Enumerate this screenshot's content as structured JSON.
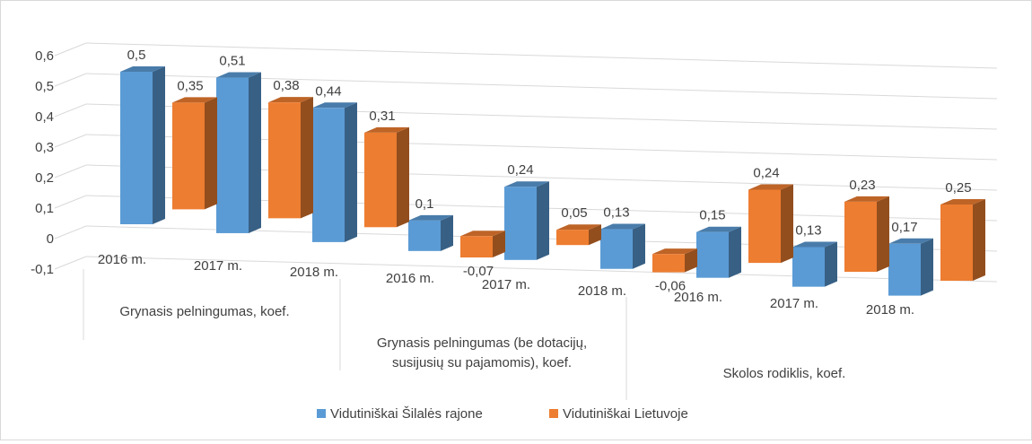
{
  "chart_data": {
    "type": "bar",
    "variant": "3d-clustered-column",
    "title": "",
    "y_ticks": [
      "0,6",
      "0,5",
      "0,4",
      "0,3",
      "0,2",
      "0,1",
      "0",
      "-0,1"
    ],
    "ylim": [
      -0.1,
      0.6
    ],
    "grid": true,
    "legend_position": "bottom",
    "groups": [
      {
        "label": "Grynasis pelningumas, koef.",
        "lines": [
          "Grynasis pelningumas, koef."
        ]
      },
      {
        "label": "Grynasis pelningumas (be dotacijų, susijusių su pajamomis), koef.",
        "lines": [
          "Grynasis pelningumas (be dotacijų,",
          "susijusių su pajamomis), koef."
        ]
      },
      {
        "label": "Skolos rodiklis, koef.",
        "lines": [
          "Skolos rodiklis, koef."
        ]
      }
    ],
    "categories": [
      "2016 m.",
      "2017 m.",
      "2018 m.",
      "2016 m.",
      "2017 m.",
      "2018 m.",
      "2016 m.",
      "2017 m.",
      "2018 m."
    ],
    "series": [
      {
        "name": "Vidutiniškai Šilalės rajone",
        "color": "#5b9bd5",
        "values": [
          0.5,
          0.51,
          0.44,
          0.1,
          0.24,
          0.13,
          0.15,
          0.13,
          0.17
        ],
        "labels": [
          "0,5",
          "0,51",
          "0,44",
          "0,1",
          "0,24",
          "0,13",
          "0,15",
          "0,13",
          "0,17"
        ]
      },
      {
        "name": "Vidutiniškai Lietuvoje",
        "color": "#ed7d31",
        "values": [
          0.35,
          0.38,
          0.31,
          -0.07,
          0.05,
          -0.06,
          0.24,
          0.23,
          0.25
        ],
        "labels": [
          "0,35",
          "0,38",
          "0,31",
          "-0,07",
          "0,05",
          "-0,06",
          "0,24",
          "0,23",
          "0,25"
        ]
      }
    ]
  }
}
